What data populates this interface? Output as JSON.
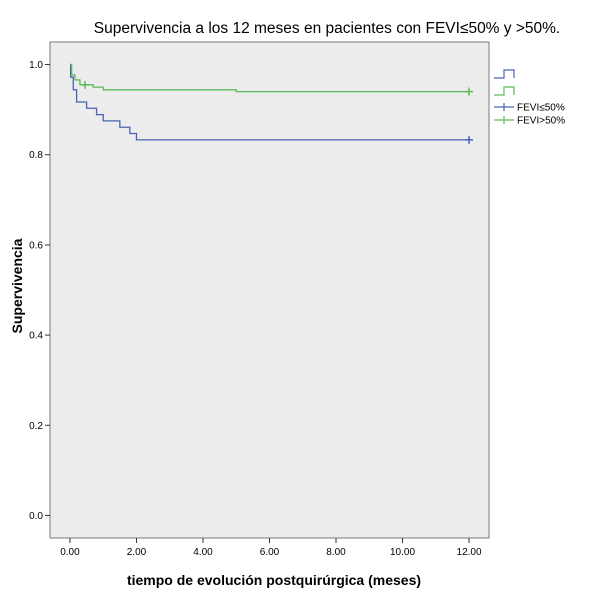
{
  "chart_data": {
    "type": "line",
    "title": "Supervivencia a los 12 meses en pacientes con FEVI≤50% y >50%.",
    "xlabel": "tiempo de evolución postquirúrgica (meses)",
    "ylabel": "Supervivencia",
    "xlim": [
      -0.6,
      12.6
    ],
    "ylim": [
      -0.05,
      1.05
    ],
    "x_ticks": [
      "0.00",
      "2.00",
      "4.00",
      "6.00",
      "8.00",
      "10.00",
      "12.00"
    ],
    "y_ticks": [
      "0.0",
      "0.2",
      "0.4",
      "0.6",
      "0.8",
      "1.0"
    ],
    "grid": false,
    "legend_position": "right",
    "series": [
      {
        "name": "FEVI≤50%",
        "color": "#4a63b4",
        "steps": [
          [
            0,
            1.0
          ],
          [
            0.02,
            0.972
          ],
          [
            0.1,
            0.944
          ],
          [
            0.2,
            0.917
          ],
          [
            0.5,
            0.903
          ],
          [
            0.8,
            0.889
          ],
          [
            1.0,
            0.875
          ],
          [
            1.5,
            0.861
          ],
          [
            1.8,
            0.847
          ],
          [
            2.0,
            0.833
          ],
          [
            12.0,
            0.833
          ]
        ],
        "censored": [
          [
            12.0,
            0.833
          ]
        ]
      },
      {
        "name": "FEVI>50%",
        "color": "#5cba5c",
        "steps": [
          [
            0,
            1.0
          ],
          [
            0.05,
            0.977
          ],
          [
            0.15,
            0.966
          ],
          [
            0.3,
            0.955
          ],
          [
            0.7,
            0.95
          ],
          [
            1.0,
            0.944
          ],
          [
            5.0,
            0.94
          ],
          [
            12.0,
            0.94
          ]
        ],
        "censored": [
          [
            0.45,
            0.955
          ],
          [
            12.0,
            0.94
          ]
        ]
      }
    ]
  }
}
